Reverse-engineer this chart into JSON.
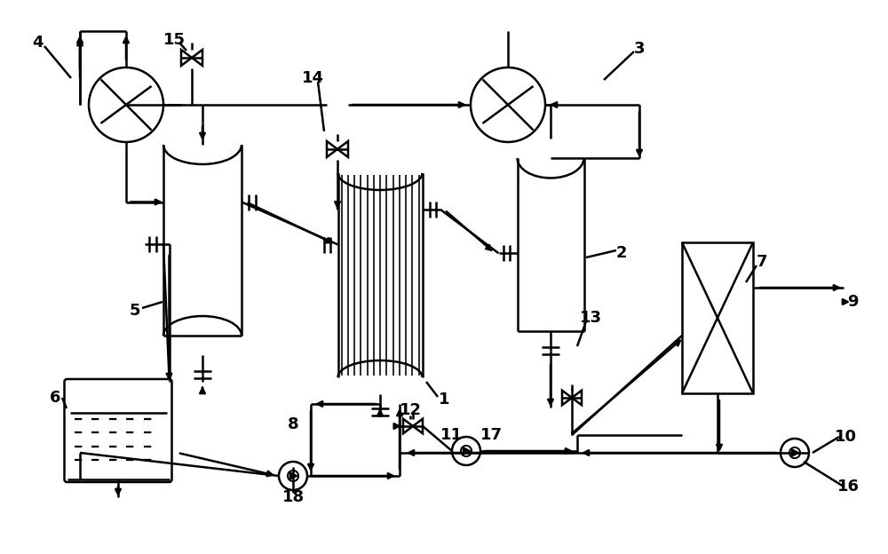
{
  "bg": "#ffffff",
  "lc": "#000000",
  "lw": 1.8,
  "fw": 10.0,
  "fh": 6.24,
  "dpi": 100
}
